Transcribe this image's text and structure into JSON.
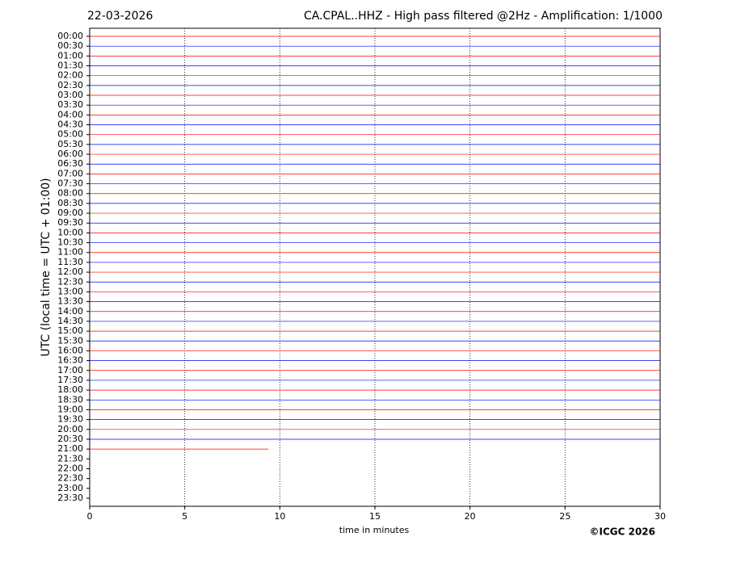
{
  "chart_data": {
    "type": "helicorder",
    "date": "22-03-2026",
    "title": "CA.CPAL..HHZ - High pass filtered @2Hz - Amplification: 1/1000",
    "xlabel": "time in minutes",
    "ylabel": "UTC (local time = UTC + 01:00)",
    "copyright": "©ICGC 2026",
    "categories": [
      "00:00",
      "00:30",
      "01:00",
      "01:30",
      "02:00",
      "02:30",
      "03:00",
      "03:30",
      "04:00",
      "04:30",
      "05:00",
      "05:30",
      "06:00",
      "06:30",
      "07:00",
      "07:30",
      "08:00",
      "08:30",
      "09:00",
      "09:30",
      "10:00",
      "10:30",
      "11:00",
      "11:30",
      "12:00",
      "12:30",
      "13:00",
      "13:30",
      "14:00",
      "14:30",
      "15:00",
      "15:30",
      "16:00",
      "16:30",
      "17:00",
      "17:30",
      "18:00",
      "18:30",
      "19:00",
      "19:30",
      "20:00",
      "20:30",
      "21:00",
      "21:30",
      "22:00",
      "22:30",
      "23:00",
      "23:30"
    ],
    "values": [
      30,
      30,
      30,
      30,
      30,
      30,
      30,
      30,
      30,
      30,
      30,
      30,
      30,
      30,
      30,
      30,
      30,
      30,
      30,
      30,
      30,
      30,
      30,
      30,
      30,
      30,
      30,
      30,
      30,
      30,
      30,
      30,
      30,
      30,
      30,
      30,
      30,
      30,
      30,
      30,
      30,
      30,
      9.4,
      null,
      null,
      null,
      null,
      null
    ],
    "colors": [
      "#ff0000",
      "#0000ff"
    ],
    "xlim": [
      0,
      30
    ],
    "xticks": [
      0,
      5,
      10,
      15,
      20,
      25,
      30
    ],
    "grid": true
  }
}
